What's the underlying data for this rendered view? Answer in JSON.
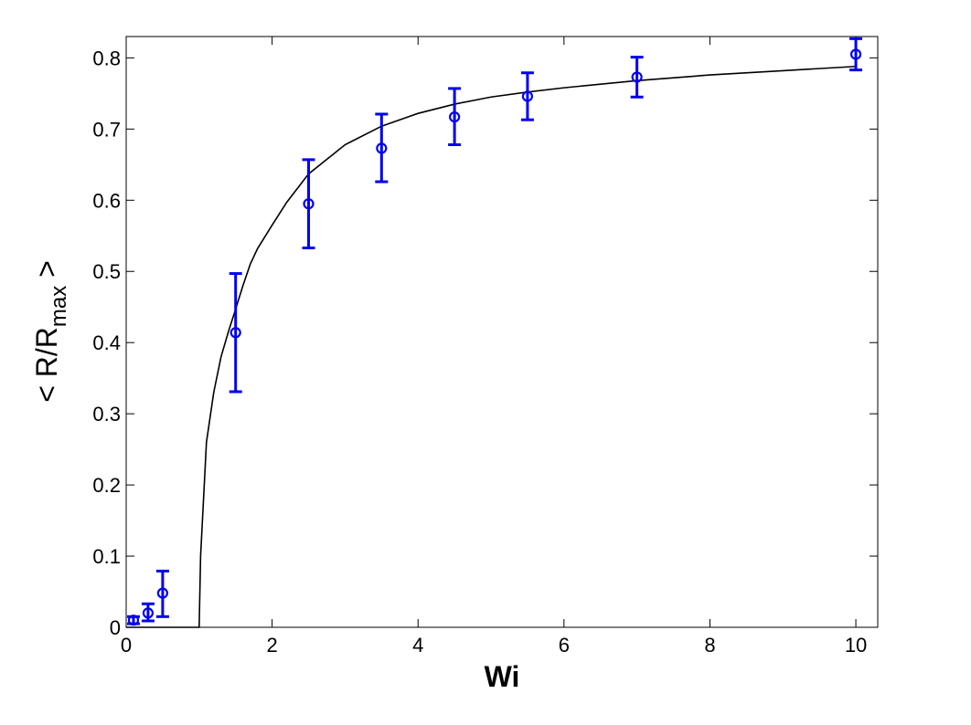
{
  "chart_data": {
    "type": "scatter",
    "title": "",
    "xlabel": "Wi",
    "ylabel": {
      "prefix": "< R/R",
      "subscript": "max",
      "suffix": " >"
    },
    "xlim": [
      0,
      10.3
    ],
    "ylim": [
      0,
      0.83
    ],
    "x_ticks": [
      0,
      2,
      4,
      6,
      8,
      10
    ],
    "y_ticks": [
      0,
      0.1,
      0.2,
      0.3,
      0.4,
      0.5,
      0.6,
      0.7,
      0.8
    ],
    "x_tick_labels": [
      "0",
      "2",
      "4",
      "6",
      "8",
      "10"
    ],
    "y_tick_labels": [
      "0",
      "0.1",
      "0.2",
      "0.3",
      "0.4",
      "0.5",
      "0.6",
      "0.7",
      "0.8"
    ],
    "grid": false,
    "legend": "none",
    "series": [
      {
        "kind": "errorbar",
        "color": "#0000ee",
        "marker": "circle",
        "x": [
          0.1,
          0.3,
          0.5,
          1.5,
          2.5,
          3.5,
          4.5,
          5.5,
          7.0,
          10.0
        ],
        "y": [
          0.01,
          0.02,
          0.048,
          0.414,
          0.595,
          0.673,
          0.717,
          0.746,
          0.773,
          0.805
        ],
        "y_err_lower": [
          0.005,
          0.011,
          0.033,
          0.083,
          0.062,
          0.047,
          0.039,
          0.033,
          0.028,
          0.022
        ],
        "y_err_upper": [
          0.005,
          0.013,
          0.031,
          0.083,
          0.062,
          0.048,
          0.04,
          0.033,
          0.028,
          0.022
        ]
      },
      {
        "kind": "line",
        "color": "#000000",
        "x": [
          0,
          1.0,
          1.02,
          1.05,
          1.1,
          1.2,
          1.3,
          1.4,
          1.5,
          1.6,
          1.7,
          1.8,
          2.0,
          2.2,
          2.5,
          3.0,
          3.5,
          4.0,
          4.5,
          5.0,
          5.5,
          6.0,
          7.0,
          8.0,
          9.0,
          10.0
        ],
        "y": [
          0,
          0,
          0.1,
          0.16,
          0.26,
          0.33,
          0.38,
          0.415,
          0.447,
          0.48,
          0.51,
          0.532,
          0.565,
          0.597,
          0.637,
          0.678,
          0.704,
          0.722,
          0.735,
          0.745,
          0.752,
          0.758,
          0.768,
          0.776,
          0.782,
          0.788
        ]
      }
    ]
  }
}
